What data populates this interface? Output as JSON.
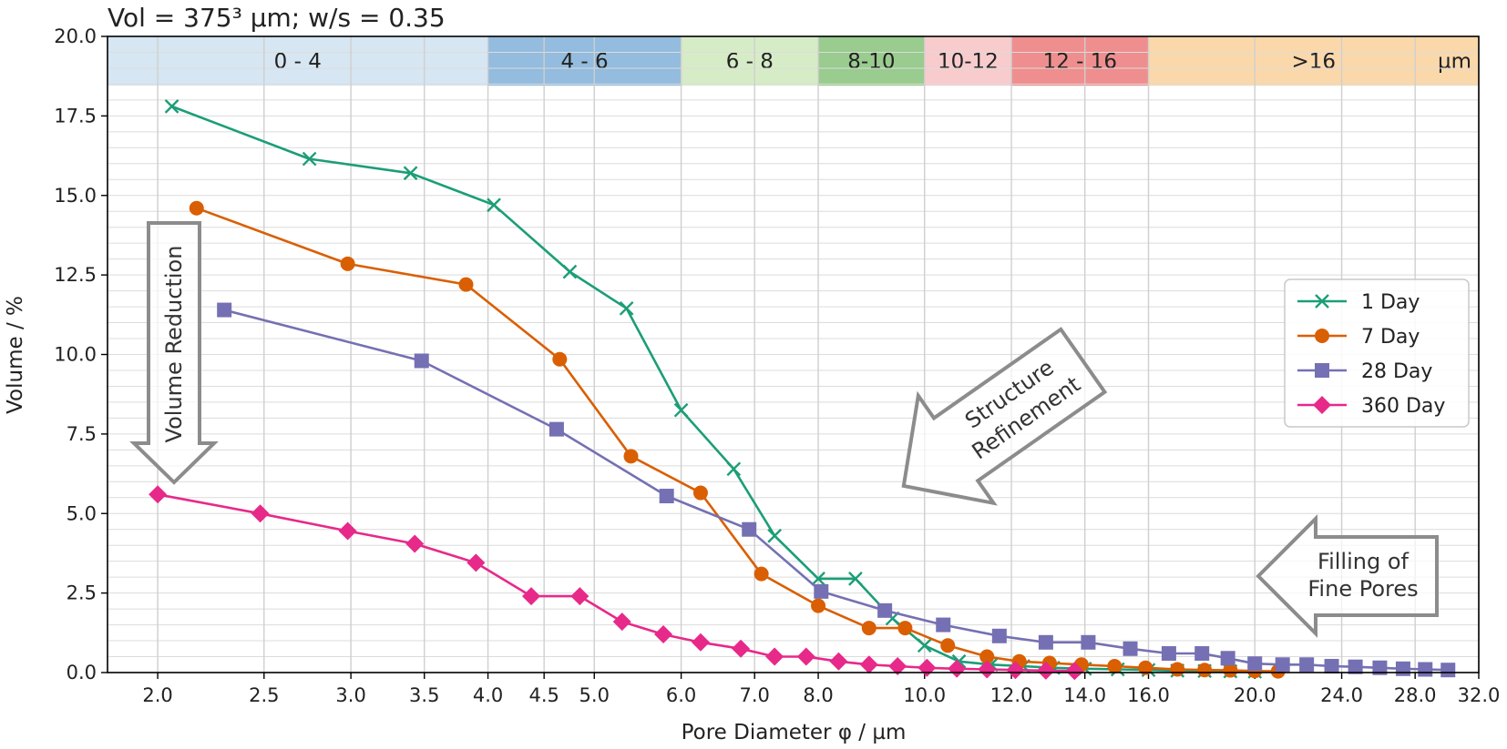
{
  "chart_data": {
    "type": "line",
    "title": "Vol = 375³ µm; w/s = 0.35",
    "xlabel": "Pore Diameter φ / µm",
    "ylabel": "Volume / %",
    "xscale": "log",
    "xlim": [
      1.8,
      32.0
    ],
    "ylim": [
      0,
      20
    ],
    "x_ticks": [
      2.0,
      2.5,
      3.0,
      3.5,
      4.0,
      4.5,
      5.0,
      6.0,
      7.0,
      8.0,
      10.0,
      12.0,
      14.0,
      16.0,
      20.0,
      24.0,
      28.0,
      32.0
    ],
    "x_tick_labels": [
      "2.0",
      "2.5",
      "3.0",
      "3.5",
      "4.0",
      "4.5",
      "5.0",
      "6.0",
      "7.0",
      "8.0",
      "10.0",
      "12.0",
      "14.0",
      "16.0",
      "20.0",
      "24.0",
      "28.0",
      "32.0"
    ],
    "y_ticks": [
      0,
      2.5,
      5,
      7.5,
      10,
      12.5,
      15,
      17.5,
      20
    ],
    "y_tick_labels": [
      "0.0",
      "2.5",
      "5.0",
      "7.5",
      "10.0",
      "12.5",
      "15.0",
      "17.5",
      "20.0"
    ],
    "grid": true,
    "legend_position": "right",
    "bands": [
      {
        "label": "0 - 4",
        "from": 1.8,
        "to": 4.0,
        "color": "#d6e6f2"
      },
      {
        "label": "4 - 6",
        "from": 4.0,
        "to": 6.0,
        "color": "#93bcde"
      },
      {
        "label": "6 - 8",
        "from": 6.0,
        "to": 8.0,
        "color": "#d6ecc6"
      },
      {
        "label": "8-10",
        "from": 8.0,
        "to": 10.0,
        "color": "#99cc8e"
      },
      {
        "label": "10-12",
        "from": 10.0,
        "to": 12.0,
        "color": "#f8cbcc"
      },
      {
        "label": "12 - 16",
        "from": 12.0,
        "to": 16.0,
        "color": "#ef8e8e"
      },
      {
        "label": ">16",
        "from": 16.0,
        "to": 32.0,
        "color": "#fbd8aa"
      }
    ],
    "band_unit": "µm",
    "series": [
      {
        "name": "1 Day",
        "color": "#1b9e77",
        "marker": "x",
        "x": [
          2.06,
          2.75,
          3.4,
          4.05,
          4.75,
          5.35,
          6.0,
          6.7,
          7.3,
          8.0,
          8.65,
          9.35,
          10.0,
          10.75,
          11.5,
          12.3,
          13.1,
          14.0,
          15.0,
          16.0,
          17.0,
          18.0,
          19.0,
          20.0
        ],
        "y": [
          17.8,
          16.15,
          15.7,
          14.7,
          12.6,
          11.45,
          8.25,
          6.4,
          4.3,
          2.95,
          2.95,
          1.7,
          0.85,
          0.35,
          0.25,
          0.2,
          0.15,
          0.12,
          0.1,
          0.08,
          0.06,
          0.05,
          0.04,
          0.03
        ]
      },
      {
        "name": "7 Day",
        "color": "#d95f02",
        "marker": "circle",
        "x": [
          2.17,
          2.98,
          3.82,
          4.65,
          5.4,
          6.25,
          7.1,
          8.0,
          8.9,
          9.6,
          10.5,
          11.4,
          12.2,
          13.0,
          13.9,
          14.9,
          15.9,
          17.0,
          18.0,
          19.0,
          20.0,
          21.0
        ],
        "y": [
          14.6,
          12.85,
          12.2,
          9.85,
          6.8,
          5.65,
          3.1,
          2.1,
          1.4,
          1.4,
          0.85,
          0.5,
          0.35,
          0.3,
          0.25,
          0.2,
          0.15,
          0.1,
          0.08,
          0.07,
          0.05,
          0.04
        ]
      },
      {
        "name": "28 Day",
        "color": "#7570b3",
        "marker": "square",
        "x": [
          2.3,
          3.48,
          4.62,
          5.82,
          6.92,
          8.05,
          9.2,
          10.4,
          11.7,
          12.9,
          14.1,
          15.4,
          16.7,
          17.9,
          18.9,
          20.0,
          21.2,
          22.3,
          23.5,
          24.7,
          26.0,
          27.3,
          28.6,
          30.0
        ],
        "y": [
          11.4,
          9.8,
          7.65,
          5.55,
          4.5,
          2.55,
          1.95,
          1.5,
          1.15,
          0.95,
          0.95,
          0.75,
          0.6,
          0.6,
          0.45,
          0.28,
          0.25,
          0.25,
          0.2,
          0.18,
          0.15,
          0.12,
          0.1,
          0.08
        ]
      },
      {
        "name": "360 Day",
        "color": "#e7298a",
        "marker": "diamond",
        "x": [
          2.0,
          2.48,
          2.98,
          3.43,
          3.9,
          4.38,
          4.85,
          5.3,
          5.78,
          6.25,
          6.8,
          7.3,
          7.8,
          8.35,
          8.9,
          9.45,
          10.05,
          10.7,
          11.4,
          12.1,
          12.9,
          13.7
        ],
        "y": [
          5.6,
          5.0,
          4.45,
          4.05,
          3.45,
          2.4,
          2.4,
          1.6,
          1.2,
          0.95,
          0.75,
          0.5,
          0.5,
          0.35,
          0.25,
          0.2,
          0.15,
          0.12,
          0.1,
          0.08,
          0.06,
          0.05
        ]
      }
    ],
    "annotations": {
      "volume_reduction": "Volume Reduction",
      "structure_refinement_1": "Structure",
      "structure_refinement_2": "Refinement",
      "filling_1": "Filling of",
      "filling_2": "Fine Pores"
    }
  }
}
